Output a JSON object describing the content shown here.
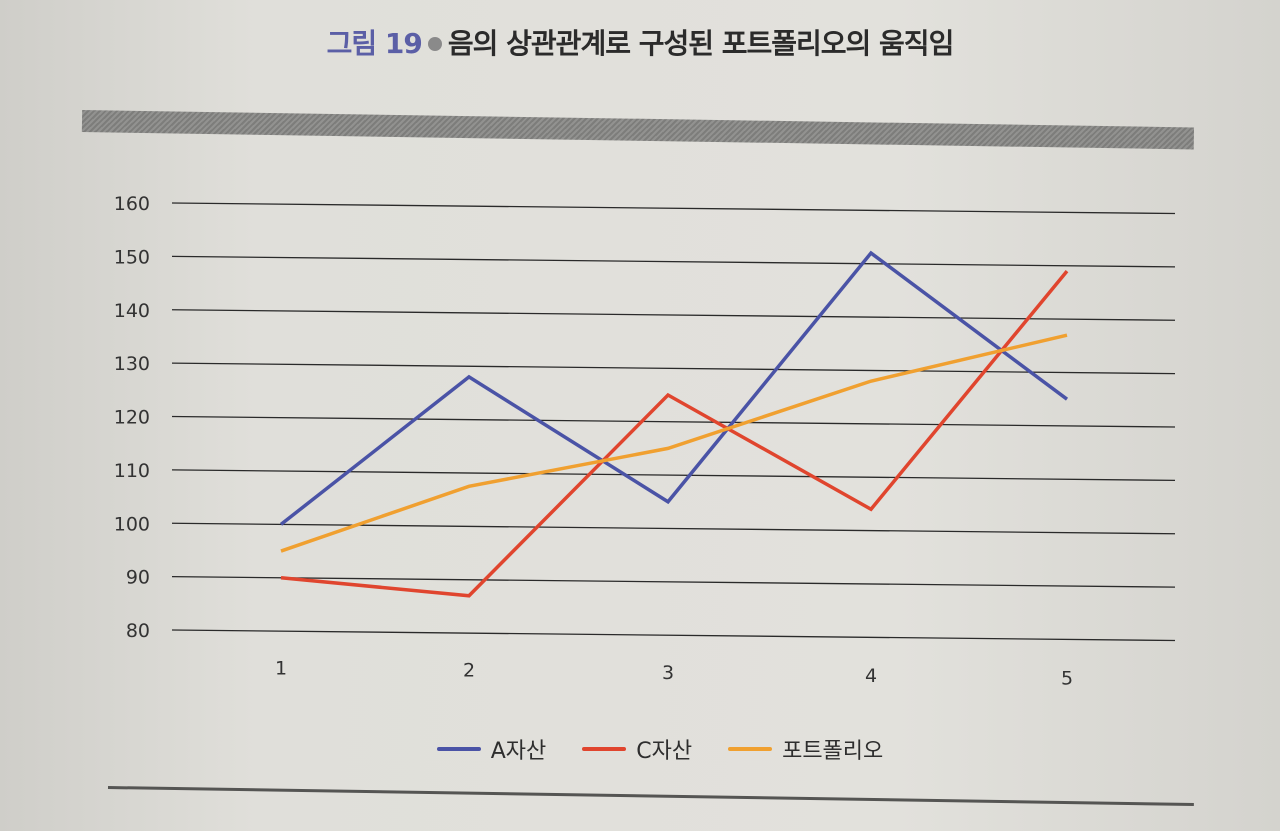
{
  "figure": {
    "label": "그림 19",
    "title": "음의 상관관계로 구성된 포트폴리오의 움직임"
  },
  "chart_data": {
    "type": "line",
    "title": "",
    "xlabel": "",
    "ylabel": "",
    "categories": [
      "1",
      "2",
      "3",
      "4",
      "5"
    ],
    "ylim": [
      80,
      160
    ],
    "yticks": [
      80,
      90,
      100,
      110,
      120,
      130,
      140,
      150,
      160
    ],
    "grid": true,
    "legend_position": "bottom",
    "series": [
      {
        "name": "A자산",
        "color": "#4a53a6",
        "values": [
          100,
          128,
          105,
          152,
          125
        ]
      },
      {
        "name": "C자산",
        "color": "#e0452e",
        "values": [
          90,
          87,
          125,
          104,
          149
        ]
      },
      {
        "name": "포트폴리오",
        "color": "#f0a030",
        "values": [
          95,
          107.5,
          115,
          128,
          137
        ]
      }
    ]
  }
}
